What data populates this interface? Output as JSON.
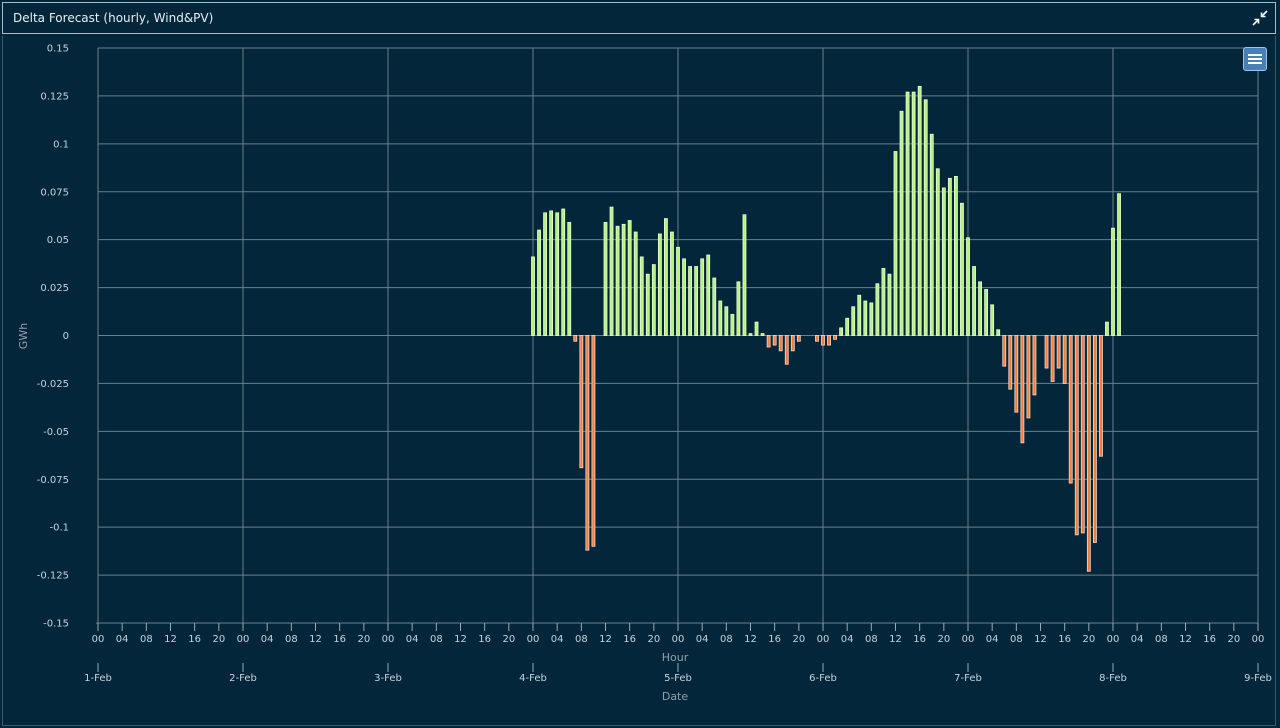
{
  "window": {
    "title": "Delta Forecast (hourly, Wind&PV)"
  },
  "icons": {
    "collapse": "collapse-icon",
    "menu": "menu-icon"
  },
  "colors": {
    "background": "#03263a",
    "positive_fill": "#b6f07e",
    "positive_stroke": "#e9ffd0",
    "negative_fill": "#f37a40",
    "negative_stroke": "#ffd9c4",
    "grid": "#6f7f88"
  },
  "chart_data": {
    "type": "bar",
    "title": "Delta Forecast (hourly, Wind&PV)",
    "ylabel": "GWh",
    "xlabel_primary": "Hour",
    "xlabel_secondary": "Date",
    "ylim": [
      -0.15,
      0.15
    ],
    "yticks": [
      0.15,
      0.125,
      0.1,
      0.075,
      0.05,
      0.025,
      0,
      -0.025,
      -0.05,
      -0.075,
      -0.1,
      -0.125,
      -0.15
    ],
    "ytick_labels": [
      "0.15",
      "0.125",
      "0.1",
      "0.075",
      "0.05",
      "0.025",
      "0",
      "-0.025",
      "-0.05",
      "-0.075",
      "-0.1",
      "-0.125",
      "-0.15"
    ],
    "x_range_hours": [
      0,
      192
    ],
    "hour_tick_labels": [
      "00",
      "04",
      "08",
      "12",
      "16",
      "20",
      "00",
      "04",
      "08",
      "12",
      "16",
      "20",
      "00",
      "04",
      "08",
      "12",
      "16",
      "20",
      "00",
      "04",
      "08",
      "12",
      "16",
      "20",
      "00",
      "04",
      "08",
      "12",
      "16",
      "20",
      "00",
      "04",
      "08",
      "12",
      "16",
      "20",
      "00",
      "04",
      "08",
      "12",
      "16",
      "20",
      "00",
      "04",
      "08",
      "12",
      "16",
      "20",
      "00"
    ],
    "date_labels": [
      "1-Feb",
      "2-Feb",
      "3-Feb",
      "4-Feb",
      "5-Feb",
      "6-Feb",
      "7-Feb",
      "8-Feb",
      "9-Feb"
    ],
    "grid": true,
    "bars_start": "4-Feb 00",
    "values": [
      0.041,
      0.055,
      0.064,
      0.065,
      0.064,
      0.066,
      0.059,
      -0.003,
      -0.069,
      -0.112,
      -0.11,
      0,
      0.059,
      0.067,
      0.057,
      0.058,
      0.06,
      0.054,
      0.041,
      0.032,
      0.037,
      0.053,
      0.061,
      0.054,
      0.046,
      0.04,
      0.036,
      0.036,
      0.04,
      0.042,
      0.03,
      0.018,
      0.015,
      0.011,
      0.028,
      0.063,
      0.001,
      0.007,
      0.001,
      -0.006,
      -0.005,
      -0.008,
      -0.015,
      -0.008,
      -0.003,
      0,
      0,
      -0.003,
      -0.005,
      -0.005,
      -0.002,
      0.004,
      0.009,
      0.015,
      0.021,
      0.018,
      0.017,
      0.027,
      0.035,
      0.032,
      0.096,
      0.117,
      0.127,
      0.127,
      0.13,
      0.123,
      0.105,
      0.087,
      0.077,
      0.082,
      0.083,
      0.069,
      0.051,
      0.036,
      0.028,
      0.024,
      0.016,
      0.003,
      -0.016,
      -0.028,
      -0.04,
      -0.056,
      -0.043,
      -0.031,
      0,
      -0.017,
      -0.024,
      -0.017,
      -0.025,
      -0.077,
      -0.104,
      -0.103,
      -0.123,
      -0.108,
      -0.063,
      0.007,
      0.056,
      0.074
    ]
  }
}
